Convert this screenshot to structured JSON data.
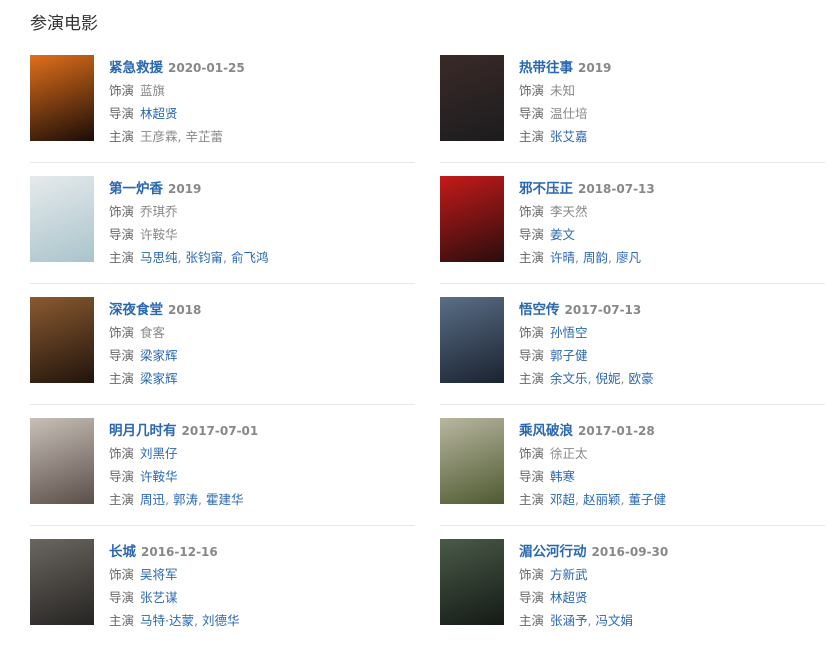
{
  "section_title": "参演电影",
  "labels": {
    "role": "饰演",
    "director": "导演",
    "cast": "主演"
  },
  "movies": [
    {
      "title": "紧急救援",
      "date": "2020-01-25",
      "poster_colors": [
        "#e0701a",
        "#1a0c08"
      ],
      "role": [
        {
          "name": "蓝旗",
          "link": false
        }
      ],
      "director": [
        {
          "name": "林超贤",
          "link": true
        }
      ],
      "cast": [
        {
          "name": "王彦霖",
          "link": false
        },
        {
          "name": "辛芷蕾",
          "link": false
        }
      ]
    },
    {
      "title": "热带往事",
      "date": "2019",
      "poster_colors": [
        "#3a2a28",
        "#1c1c1e"
      ],
      "role": [
        {
          "name": "未知",
          "link": false
        }
      ],
      "director": [
        {
          "name": "温仕培",
          "link": false
        }
      ],
      "cast": [
        {
          "name": "张艾嘉",
          "link": true
        }
      ]
    },
    {
      "title": "第一炉香",
      "date": "2019",
      "poster_colors": [
        "#e6eaec",
        "#a9c4cb"
      ],
      "role": [
        {
          "name": "乔琪乔",
          "link": false
        }
      ],
      "director": [
        {
          "name": "许鞍华",
          "link": false
        }
      ],
      "cast": [
        {
          "name": "马思纯",
          "link": true
        },
        {
          "name": "张钧甯",
          "link": true
        },
        {
          "name": "俞飞鸿",
          "link": true
        }
      ]
    },
    {
      "title": "邪不压正",
      "date": "2018-07-13",
      "poster_colors": [
        "#c41a1a",
        "#2a0d0d"
      ],
      "role": [
        {
          "name": "李天然",
          "link": false
        }
      ],
      "director": [
        {
          "name": "姜文",
          "link": true
        }
      ],
      "cast": [
        {
          "name": "许晴",
          "link": true
        },
        {
          "name": "周韵",
          "link": true
        },
        {
          "name": "廖凡",
          "link": true
        }
      ]
    },
    {
      "title": "深夜食堂",
      "date": "2018",
      "poster_colors": [
        "#8a5a30",
        "#20140c"
      ],
      "role": [
        {
          "name": "食客",
          "link": false
        }
      ],
      "director": [
        {
          "name": "梁家辉",
          "link": true
        }
      ],
      "cast": [
        {
          "name": "梁家辉",
          "link": true
        }
      ]
    },
    {
      "title": "悟空传",
      "date": "2017-07-13",
      "poster_colors": [
        "#5a6e86",
        "#1a2230"
      ],
      "role": [
        {
          "name": "孙悟空",
          "link": true
        }
      ],
      "director": [
        {
          "name": "郭子健",
          "link": true
        }
      ],
      "cast": [
        {
          "name": "余文乐",
          "link": true
        },
        {
          "name": "倪妮",
          "link": true
        },
        {
          "name": "欧豪",
          "link": true
        }
      ]
    },
    {
      "title": "明月几时有",
      "date": "2017-07-01",
      "poster_colors": [
        "#c8c0b8",
        "#5a4e48"
      ],
      "role": [
        {
          "name": "刘黑仔",
          "link": true
        }
      ],
      "director": [
        {
          "name": "许鞍华",
          "link": true
        }
      ],
      "cast": [
        {
          "name": "周迅",
          "link": true
        },
        {
          "name": "郭涛",
          "link": true
        },
        {
          "name": "霍建华",
          "link": true
        }
      ]
    },
    {
      "title": "乘风破浪",
      "date": "2017-01-28",
      "poster_colors": [
        "#b8b6a0",
        "#4e5a30"
      ],
      "role": [
        {
          "name": "徐正太",
          "link": false
        }
      ],
      "director": [
        {
          "name": "韩寒",
          "link": true
        }
      ],
      "cast": [
        {
          "name": "邓超",
          "link": true
        },
        {
          "name": "赵丽颖",
          "link": true
        },
        {
          "name": "董子健",
          "link": true
        }
      ]
    },
    {
      "title": "长城",
      "date": "2016-12-16",
      "poster_colors": [
        "#6a6660",
        "#262422"
      ],
      "role": [
        {
          "name": "吴将军",
          "link": true
        }
      ],
      "director": [
        {
          "name": "张艺谋",
          "link": true
        }
      ],
      "cast": [
        {
          "name": "马特·达蒙",
          "link": true
        },
        {
          "name": "刘德华",
          "link": true
        }
      ]
    },
    {
      "title": "湄公河行动",
      "date": "2016-09-30",
      "poster_colors": [
        "#4a5a48",
        "#141a16"
      ],
      "role": [
        {
          "name": "方新武",
          "link": true
        }
      ],
      "director": [
        {
          "name": "林超贤",
          "link": true
        }
      ],
      "cast": [
        {
          "name": "张涵予",
          "link": true
        },
        {
          "name": "冯文娟",
          "link": true
        }
      ]
    }
  ]
}
